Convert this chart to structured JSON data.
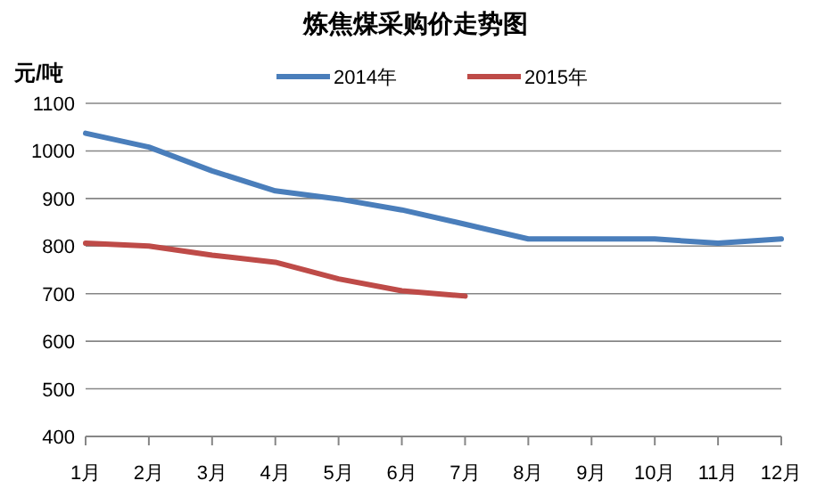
{
  "chart_data": {
    "type": "line",
    "title": "炼焦煤采购价走势图",
    "ylabel": "元/吨",
    "categories": [
      "1月",
      "2月",
      "3月",
      "4月",
      "5月",
      "6月",
      "7月",
      "8月",
      "9月",
      "10月",
      "11月",
      "12月"
    ],
    "series": [
      {
        "name": "2014年",
        "color": "#4a7ebb",
        "values": [
          1037,
          1008,
          958,
          916,
          899,
          876,
          846,
          815,
          815,
          815,
          806,
          815
        ]
      },
      {
        "name": "2015年",
        "color": "#be4b48",
        "values": [
          806,
          800,
          781,
          766,
          731,
          706,
          695,
          null,
          null,
          null,
          null,
          null
        ]
      }
    ],
    "ylim": [
      400,
      1100
    ],
    "yticks": [
      400,
      500,
      600,
      700,
      800,
      900,
      1000,
      1100
    ],
    "grid": "y",
    "legend": "top",
    "marker": "none",
    "line_style": "solid"
  }
}
